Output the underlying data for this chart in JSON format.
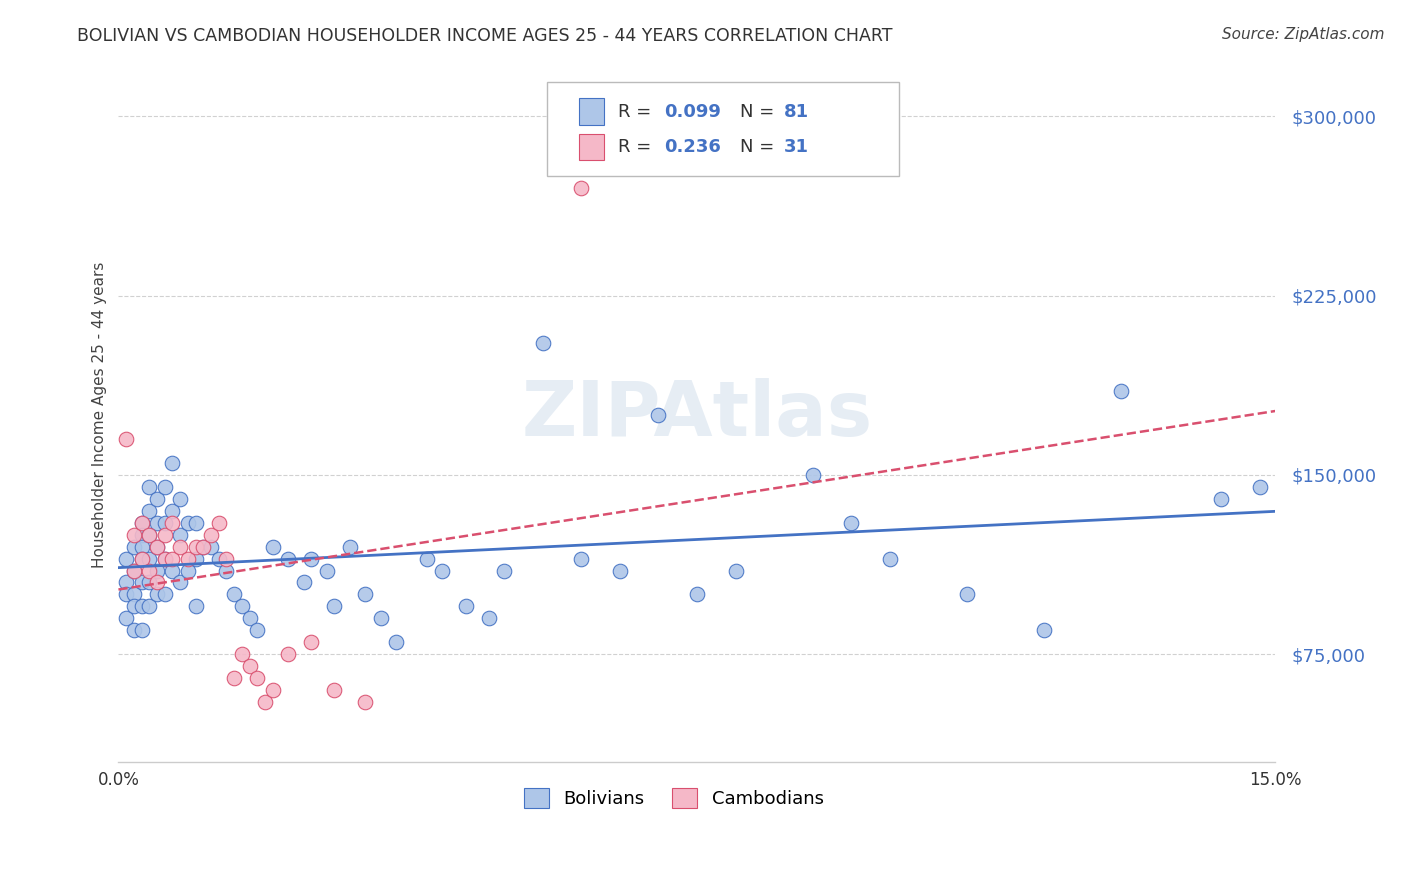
{
  "title": "BOLIVIAN VS CAMBODIAN HOUSEHOLDER INCOME AGES 25 - 44 YEARS CORRELATION CHART",
  "source": "Source: ZipAtlas.com",
  "ylabel": "Householder Income Ages 25 - 44 years",
  "xlim": [
    0.0,
    0.15
  ],
  "ylim": [
    30000,
    320000
  ],
  "yticks": [
    75000,
    150000,
    225000,
    300000
  ],
  "ytick_labels": [
    "$75,000",
    "$150,000",
    "$225,000",
    "$300,000"
  ],
  "xticks": [
    0.0,
    0.05,
    0.1,
    0.15
  ],
  "xtick_labels": [
    "0.0%",
    "",
    "",
    "15.0%"
  ],
  "bolivian_color": "#aec6e8",
  "cambodian_color": "#f5b8c8",
  "trend_bolivian_color": "#4472c4",
  "trend_cambodian_color": "#d94f6e",
  "background_color": "#ffffff",
  "grid_color": "#cccccc",
  "watermark": "ZIPAtlas",
  "bolivian_x": [
    0.001,
    0.001,
    0.001,
    0.001,
    0.002,
    0.002,
    0.002,
    0.002,
    0.002,
    0.003,
    0.003,
    0.003,
    0.003,
    0.003,
    0.003,
    0.003,
    0.004,
    0.004,
    0.004,
    0.004,
    0.004,
    0.004,
    0.005,
    0.005,
    0.005,
    0.005,
    0.005,
    0.006,
    0.006,
    0.006,
    0.006,
    0.007,
    0.007,
    0.007,
    0.008,
    0.008,
    0.008,
    0.009,
    0.009,
    0.01,
    0.01,
    0.01,
    0.011,
    0.012,
    0.013,
    0.014,
    0.015,
    0.016,
    0.017,
    0.018,
    0.02,
    0.022,
    0.024,
    0.025,
    0.027,
    0.028,
    0.03,
    0.032,
    0.034,
    0.036,
    0.04,
    0.042,
    0.045,
    0.048,
    0.05,
    0.055,
    0.06,
    0.065,
    0.07,
    0.075,
    0.08,
    0.09,
    0.095,
    0.1,
    0.11,
    0.12,
    0.13,
    0.143,
    0.148
  ],
  "bolivian_y": [
    115000,
    105000,
    100000,
    90000,
    120000,
    110000,
    100000,
    95000,
    85000,
    130000,
    125000,
    120000,
    115000,
    105000,
    95000,
    85000,
    145000,
    135000,
    125000,
    115000,
    105000,
    95000,
    140000,
    130000,
    120000,
    110000,
    100000,
    145000,
    130000,
    115000,
    100000,
    155000,
    135000,
    110000,
    140000,
    125000,
    105000,
    130000,
    110000,
    130000,
    115000,
    95000,
    120000,
    120000,
    115000,
    110000,
    100000,
    95000,
    90000,
    85000,
    120000,
    115000,
    105000,
    115000,
    110000,
    95000,
    120000,
    100000,
    90000,
    80000,
    115000,
    110000,
    95000,
    90000,
    110000,
    205000,
    115000,
    110000,
    175000,
    100000,
    110000,
    150000,
    130000,
    115000,
    100000,
    85000,
    185000,
    140000,
    145000
  ],
  "cambodian_x": [
    0.001,
    0.002,
    0.002,
    0.003,
    0.003,
    0.004,
    0.004,
    0.005,
    0.005,
    0.006,
    0.006,
    0.007,
    0.007,
    0.008,
    0.009,
    0.01,
    0.011,
    0.012,
    0.013,
    0.014,
    0.015,
    0.016,
    0.017,
    0.018,
    0.019,
    0.02,
    0.022,
    0.025,
    0.028,
    0.032,
    0.06
  ],
  "cambodian_y": [
    165000,
    125000,
    110000,
    130000,
    115000,
    125000,
    110000,
    120000,
    105000,
    125000,
    115000,
    130000,
    115000,
    120000,
    115000,
    120000,
    120000,
    125000,
    130000,
    115000,
    65000,
    75000,
    70000,
    65000,
    55000,
    60000,
    75000,
    80000,
    60000,
    55000,
    270000
  ]
}
